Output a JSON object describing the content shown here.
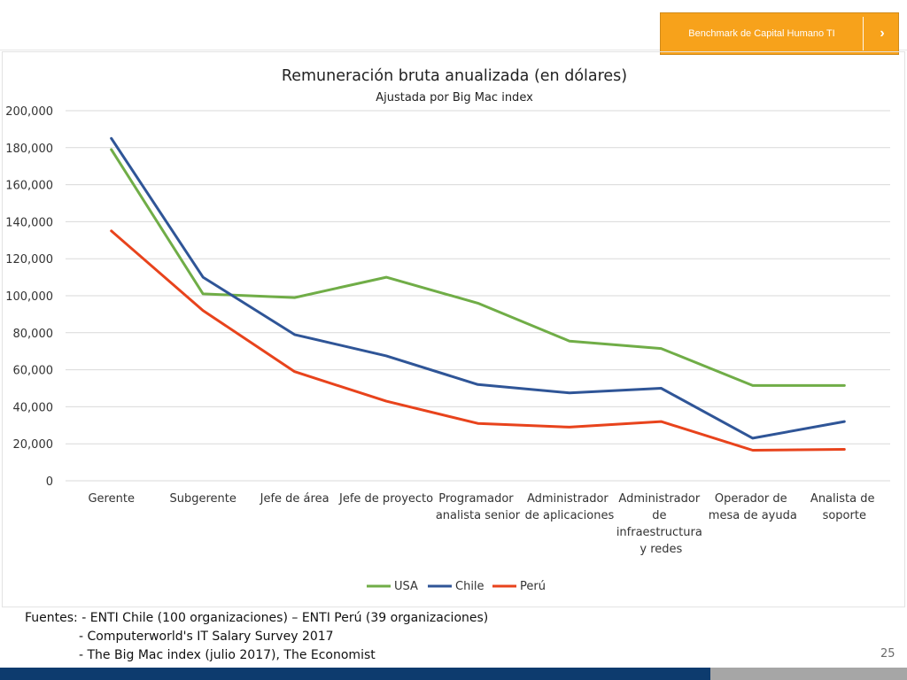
{
  "banner": {
    "label": "Benchmark de Capital Humano TI",
    "arrow": "›"
  },
  "colors": {
    "USA": "#70ad47",
    "Chile": "#2f5597",
    "Perú": "#e8431c",
    "banner": "#f7a21b",
    "grid": "#d9d9d9"
  },
  "chart_data": {
    "type": "line",
    "title": "Remuneración bruta anualizada (en dólares)",
    "subtitle": "Ajustada por Big Mac index",
    "categories": [
      [
        "Gerente"
      ],
      [
        "Subgerente"
      ],
      [
        "Jefe de área"
      ],
      [
        "Jefe de proyecto"
      ],
      [
        "Programador ",
        "analista senior"
      ],
      [
        "Administrador ",
        "de aplicaciones"
      ],
      [
        "Administrador ",
        "de ",
        "infraestructura ",
        "y redes"
      ],
      [
        "Operador de ",
        "mesa de ayuda"
      ],
      [
        "Analista de ",
        "soporte"
      ]
    ],
    "yticks": [
      "0",
      "20,000",
      "40,000",
      "60,000",
      "80,000",
      "100,000",
      "120,000",
      "140,000",
      "160,000",
      "180,000",
      "200,000"
    ],
    "ylim": [
      0,
      200000
    ],
    "grid": true,
    "legend_position": "bottom",
    "series": [
      {
        "name": "USA",
        "values": [
          179000,
          101000,
          99000,
          110000,
          96000,
          75500,
          71500,
          51500,
          51500
        ]
      },
      {
        "name": "Chile",
        "values": [
          185000,
          110000,
          79000,
          67500,
          52000,
          47500,
          50000,
          23000,
          32000
        ]
      },
      {
        "name": "Perú",
        "values": [
          135000,
          92000,
          59000,
          43000,
          31000,
          29000,
          32000,
          16500,
          17000
        ]
      }
    ]
  },
  "sources": {
    "label": "Fuentes:",
    "lines": [
      "- ENTI Chile (100 organizaciones) – ENTI Perú (39 organizaciones)",
      "- Computerworld's IT Salary Survey 2017",
      "- The Big Mac index (julio 2017), The Economist"
    ]
  },
  "page_number": "25"
}
